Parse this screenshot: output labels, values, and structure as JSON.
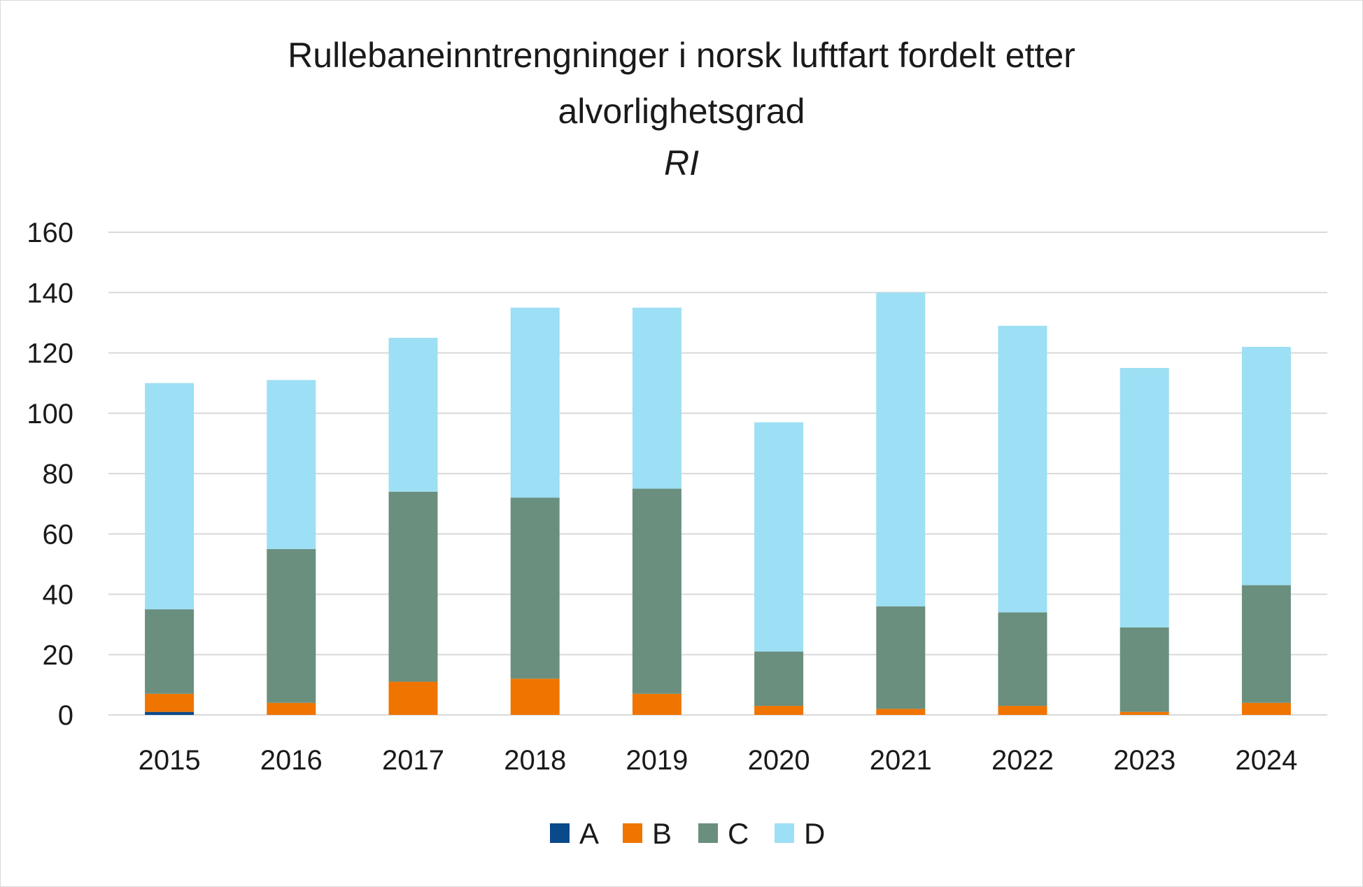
{
  "chart_data": {
    "type": "bar",
    "stacked": true,
    "title_lines": [
      "Rullebaneinntrengninger i norsk luftfart fordelt etter",
      "alvorlighetsgrad"
    ],
    "subtitle": "RI",
    "xlabel": "",
    "ylabel": "",
    "ylim": [
      0,
      160
    ],
    "yticks": [
      0,
      20,
      40,
      60,
      80,
      100,
      120,
      140,
      160
    ],
    "grid": true,
    "legend_position": "bottom",
    "categories": [
      "2015",
      "2016",
      "2017",
      "2018",
      "2019",
      "2020",
      "2021",
      "2022",
      "2023",
      "2024"
    ],
    "series": [
      {
        "name": "A",
        "color": "#0b4a8a",
        "values": [
          1,
          0,
          0,
          0,
          0,
          0,
          0,
          0,
          0,
          0
        ]
      },
      {
        "name": "B",
        "color": "#f07400",
        "values": [
          6,
          4,
          11,
          12,
          7,
          3,
          2,
          3,
          1,
          4
        ]
      },
      {
        "name": "C",
        "color": "#6a8f7e",
        "values": [
          28,
          51,
          63,
          60,
          68,
          18,
          34,
          31,
          28,
          39
        ]
      },
      {
        "name": "D",
        "color": "#9ddff4",
        "values": [
          75,
          56,
          51,
          63,
          60,
          76,
          104,
          95,
          86,
          79
        ]
      }
    ]
  }
}
